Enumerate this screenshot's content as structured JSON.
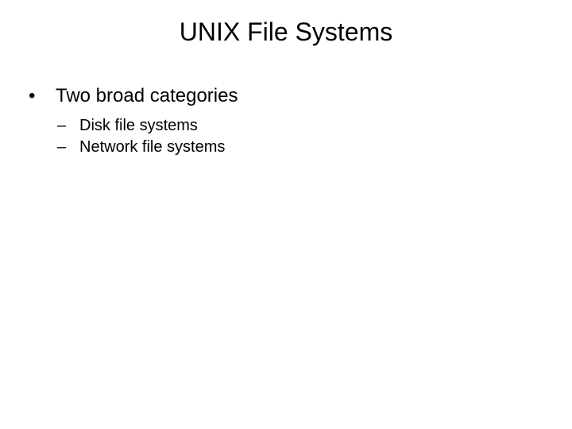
{
  "slide": {
    "title": "UNIX File Systems",
    "title_fontsize": 32,
    "background_color": "#ffffff",
    "text_color": "#000000",
    "body_fontsize_l1": 24,
    "body_fontsize_l2": 20,
    "bullets": {
      "l1": [
        {
          "marker": "•",
          "text": "Two broad categories"
        }
      ],
      "l2": [
        {
          "marker": "–",
          "text": "Disk file systems"
        },
        {
          "marker": "–",
          "text": "Network file systems"
        }
      ]
    }
  }
}
